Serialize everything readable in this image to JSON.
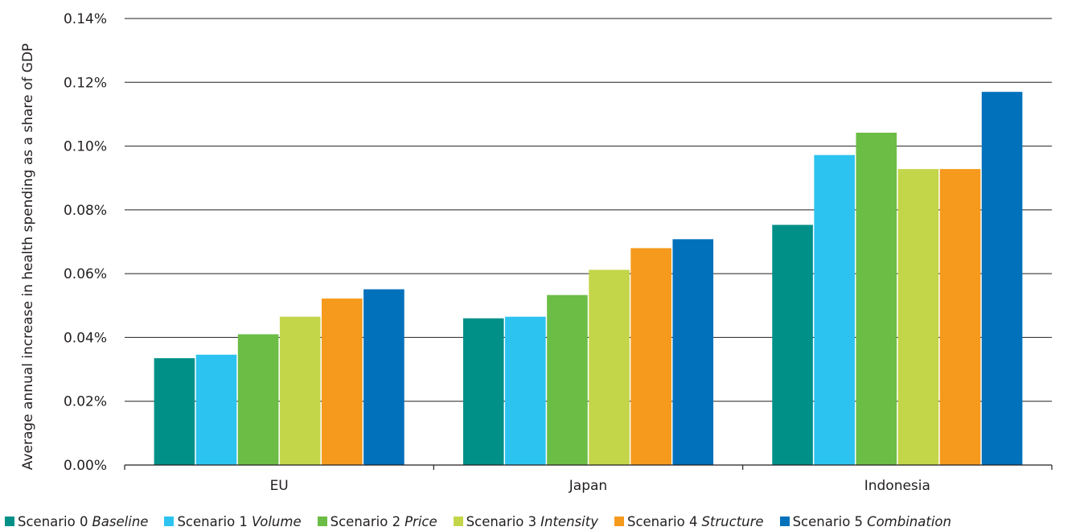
{
  "chart_data": {
    "type": "bar",
    "title": "",
    "xlabel": "",
    "ylabel": "Average annual increase in health spending as a share of GDP",
    "ylim": [
      0,
      0.14
    ],
    "yticks": [
      "0.00%",
      "0.02%",
      "0.04%",
      "0.06%",
      "0.08%",
      "0.10%",
      "0.12%",
      "0.14%"
    ],
    "grid": true,
    "legend_position": "bottom",
    "categories": [
      "EU",
      "Japan",
      "Indonesia"
    ],
    "series": [
      {
        "name": "Scenario 0",
        "name_italic": "Baseline",
        "color": "#009088",
        "values": [
          0.0335,
          0.046,
          0.0753
        ]
      },
      {
        "name": "Scenario 1",
        "name_italic": "Volume",
        "color": "#2dc3f0",
        "values": [
          0.0346,
          0.0465,
          0.0972
        ]
      },
      {
        "name": "Scenario 2",
        "name_italic": "Price",
        "color": "#6bbd45",
        "values": [
          0.041,
          0.0533,
          0.1042
        ]
      },
      {
        "name": "Scenario 3",
        "name_italic": "Intensity",
        "color": "#c3d64a",
        "values": [
          0.0465,
          0.0612,
          0.0928
        ]
      },
      {
        "name": "Scenario 4",
        "name_italic": "Structure",
        "color": "#f59a1c",
        "values": [
          0.0522,
          0.068,
          0.0928
        ]
      },
      {
        "name": "Scenario 5",
        "name_italic": "Combination",
        "color": "#0171bb",
        "values": [
          0.0551,
          0.0708,
          0.117
        ]
      }
    ]
  }
}
